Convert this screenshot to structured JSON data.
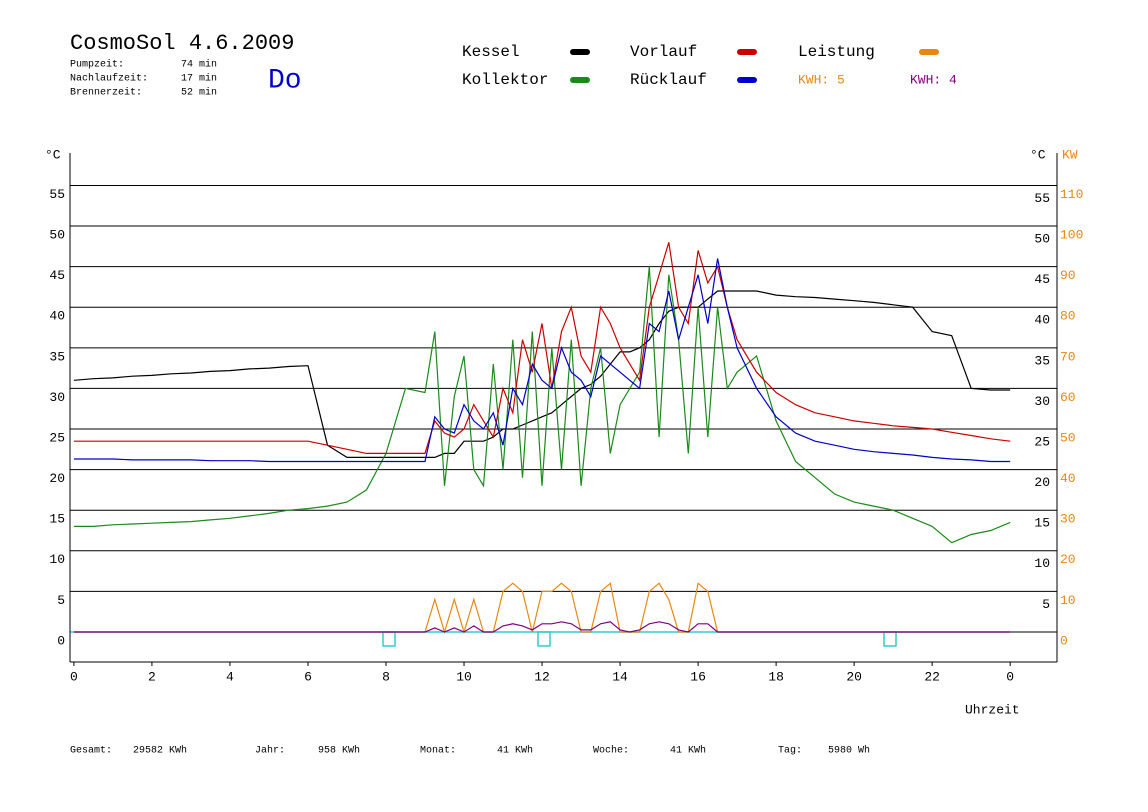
{
  "header": {
    "title": "CosmoSol 4.6.2009",
    "day": "Do",
    "info": [
      {
        "label": "Pumpzeit:",
        "value": "74 min"
      },
      {
        "label": "Nachlaufzeit:",
        "value": "17 min"
      },
      {
        "label": "Brennerzeit:",
        "value": "52 min"
      }
    ]
  },
  "chart_data": {
    "type": "line",
    "y_unit": "°C",
    "y2_unit": "KW",
    "xlabel": "Uhrzeit",
    "annotations": [
      {
        "text": "KWH: 5",
        "color": "#e8870e"
      },
      {
        "text": "KWH: 4",
        "color": "#800080"
      }
    ],
    "x": [
      0,
      0.5,
      1,
      1.5,
      2,
      2.5,
      3,
      3.5,
      4,
      4.5,
      5,
      5.5,
      6,
      6.5,
      7,
      7.5,
      8,
      8.5,
      9,
      9.25,
      9.5,
      9.75,
      10,
      10.25,
      10.5,
      10.75,
      11,
      11.25,
      11.5,
      11.75,
      12,
      12.25,
      12.5,
      12.75,
      13,
      13.25,
      13.5,
      13.75,
      14,
      14.25,
      14.5,
      14.75,
      15,
      15.25,
      15.5,
      15.75,
      16,
      16.25,
      16.5,
      16.75,
      17,
      17.5,
      18,
      18.5,
      19,
      19.5,
      20,
      20.5,
      21,
      21.5,
      22,
      22.5,
      23,
      23.5,
      24
    ],
    "xlim": [
      -0.1,
      25.2
    ],
    "xticks": [
      0,
      2,
      4,
      6,
      8,
      10,
      12,
      14,
      16,
      18,
      20,
      22,
      {
        "value": 24,
        "label": "0"
      }
    ],
    "ylim": [
      -3.7,
      59
    ],
    "yticks": [
      0,
      5,
      10,
      15,
      20,
      25,
      30,
      35,
      40,
      45,
      50,
      55
    ],
    "y2lim": [
      -7.4,
      118
    ],
    "y2ticks": [
      0,
      10,
      20,
      30,
      40,
      50,
      60,
      70,
      80,
      90,
      100,
      110
    ],
    "grid": true,
    "series": [
      {
        "name": "Kessel",
        "color": "#000000",
        "values": [
          31,
          31.2,
          31.3,
          31.5,
          31.6,
          31.8,
          31.9,
          32.1,
          32.2,
          32.4,
          32.5,
          32.7,
          32.8,
          23,
          21.5,
          21.5,
          21.5,
          21.5,
          21.5,
          21.5,
          22,
          22,
          23.5,
          23.5,
          23.5,
          24,
          25,
          25,
          25.5,
          26,
          26.5,
          27,
          28,
          29,
          30,
          30.5,
          31.5,
          33,
          34.5,
          34.5,
          35,
          36,
          38,
          39.5,
          40,
          40,
          40,
          41,
          42,
          42,
          42,
          42,
          41.5,
          41.3,
          41.2,
          41,
          40.8,
          40.6,
          40.3,
          40,
          37,
          36.5,
          30,
          29.8,
          29.8
        ]
      },
      {
        "name": "Kollektor",
        "color": "#1a8a1a",
        "values": [
          13,
          13,
          13.2,
          13.3,
          13.4,
          13.5,
          13.6,
          13.8,
          14,
          14.3,
          14.6,
          15,
          15.2,
          15.5,
          16,
          17.5,
          22,
          30,
          29.5,
          37,
          18,
          29,
          34,
          20,
          18,
          33,
          20,
          36,
          19,
          37,
          18,
          35,
          20,
          36,
          18,
          30,
          35,
          22,
          28,
          30,
          32,
          45,
          24,
          44,
          36,
          22,
          40,
          24,
          40,
          30,
          32,
          34,
          26,
          21,
          19,
          17,
          16,
          15.5,
          15,
          14,
          13,
          11,
          12,
          12.5,
          13.5
        ]
      },
      {
        "name": "Vorlauf",
        "color": "#cc0000",
        "values": [
          23.5,
          23.5,
          23.5,
          23.5,
          23.5,
          23.5,
          23.5,
          23.5,
          23.5,
          23.5,
          23.5,
          23.5,
          23.5,
          23,
          22.5,
          22,
          22,
          22,
          22,
          26,
          24.5,
          24,
          25,
          28,
          26,
          24,
          30,
          27,
          36,
          32,
          38,
          30,
          37,
          40,
          34,
          32,
          40,
          38,
          35,
          33,
          31,
          40,
          44,
          48,
          40,
          38,
          47,
          43,
          45,
          40,
          36,
          32,
          29.5,
          28,
          27,
          26.5,
          26,
          25.7,
          25.4,
          25.2,
          25,
          24.6,
          24.2,
          23.8,
          23.5
        ]
      },
      {
        "name": "Rücklauf",
        "color": "#0000cc",
        "values": [
          21.3,
          21.3,
          21.3,
          21.2,
          21.2,
          21.2,
          21.2,
          21.1,
          21.1,
          21.1,
          21,
          21,
          21,
          21,
          21,
          21,
          21,
          21,
          21,
          26.5,
          25,
          24.5,
          28,
          26,
          25,
          27,
          23,
          30,
          28,
          33,
          31,
          30,
          35,
          32,
          31,
          29,
          34,
          33,
          32,
          31,
          30,
          38,
          37,
          42,
          36,
          40,
          44,
          38,
          46,
          40,
          35,
          30,
          26.5,
          24.5,
          23.5,
          23,
          22.5,
          22.2,
          22,
          21.8,
          21.5,
          21.3,
          21.2,
          21,
          21
        ]
      },
      {
        "name": "Leistung",
        "color": "#e8870e",
        "axis": "y2",
        "values": [
          0,
          0,
          0,
          0,
          0,
          0,
          0,
          0,
          0,
          0,
          0,
          0,
          0,
          0,
          0,
          0,
          0,
          0,
          0,
          8,
          0,
          8,
          0,
          8,
          0,
          0,
          10,
          12,
          10,
          0,
          10,
          10,
          12,
          10,
          0,
          0,
          10,
          12,
          0,
          0,
          0,
          10,
          12,
          8,
          0,
          0,
          12,
          10,
          0,
          0,
          0,
          0,
          0,
          0,
          0,
          0,
          0,
          0,
          0,
          0,
          0,
          0,
          0,
          0,
          0
        ]
      },
      {
        "color": "#800080",
        "axis": "y2",
        "values": [
          0,
          0,
          0,
          0,
          0,
          0,
          0,
          0,
          0,
          0,
          0,
          0,
          0,
          0,
          0,
          0,
          0,
          0,
          0,
          1,
          0,
          1,
          0,
          1.5,
          0,
          0,
          1.5,
          2,
          1.5,
          0.5,
          2,
          2,
          2.5,
          2,
          0.5,
          0.5,
          2,
          2.5,
          0.5,
          0,
          0.5,
          2,
          2.5,
          2,
          0.5,
          0,
          2,
          2,
          0,
          0,
          0,
          0,
          0,
          0,
          0,
          0,
          0,
          0,
          0,
          0,
          0,
          0,
          0,
          0,
          0
        ]
      }
    ]
  },
  "footer": [
    {
      "label": "Gesamt:",
      "value": "29582 KWh"
    },
    {
      "label": "Jahr:",
      "value": "958 KWh"
    },
    {
      "label": "Monat:",
      "value": "41 KWh"
    },
    {
      "label": "Woche:",
      "value": "41 KWh"
    },
    {
      "label": "Tag:",
      "value": "5980 Wh"
    }
  ]
}
